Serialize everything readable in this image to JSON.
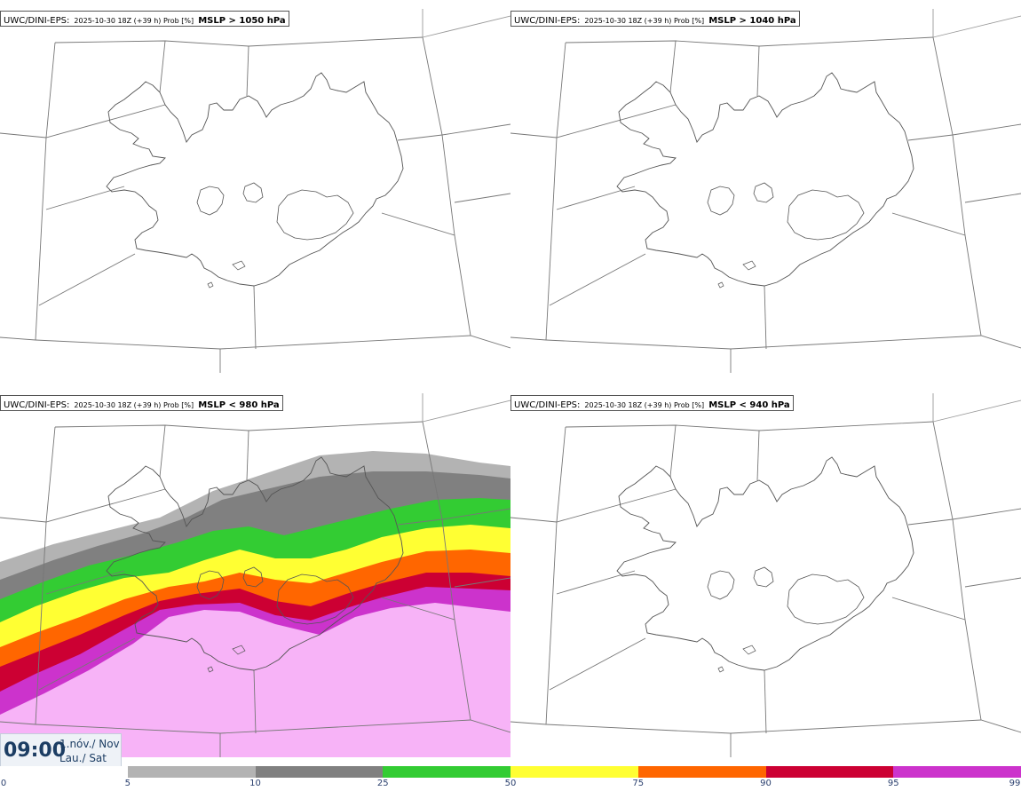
{
  "panels": [
    {
      "model": "UWC/DINI-EPS",
      "sep": ":",
      "meta": "2025-10-30 18Z (+39 h) Prob [%]",
      "threshold": "MSLP > 1050 hPa"
    },
    {
      "model": "UWC/DINI-EPS",
      "sep": ":",
      "meta": "2025-10-30 18Z (+39 h) Prob [%]",
      "threshold": "MSLP > 1040 hPa"
    },
    {
      "model": "UWC/DINI-EPS",
      "sep": ":",
      "meta": "2025-10-30 18Z (+39 h) Prob [%]",
      "threshold": "MSLP < 980 hPa"
    },
    {
      "model": "UWC/DINI-EPS",
      "sep": ":",
      "meta": "2025-10-30 18Z (+39 h) Prob [%]",
      "threshold": "MSLP < 940 hPa"
    }
  ],
  "valid_time": {
    "time": "09:00",
    "date": "1.nóv./ Nov",
    "day": "Lau./ Sat"
  },
  "colorbar": {
    "ticks": [
      "0",
      "5",
      "10",
      "25",
      "50",
      "75",
      "90",
      "95",
      "99"
    ],
    "colors": [
      "#ffffff",
      "#b3b3b3",
      "#808080",
      "#33cc33",
      "#ffff33",
      "#ff6600",
      "#cc0033",
      "#cc33cc",
      "#f7b3f7"
    ]
  }
}
